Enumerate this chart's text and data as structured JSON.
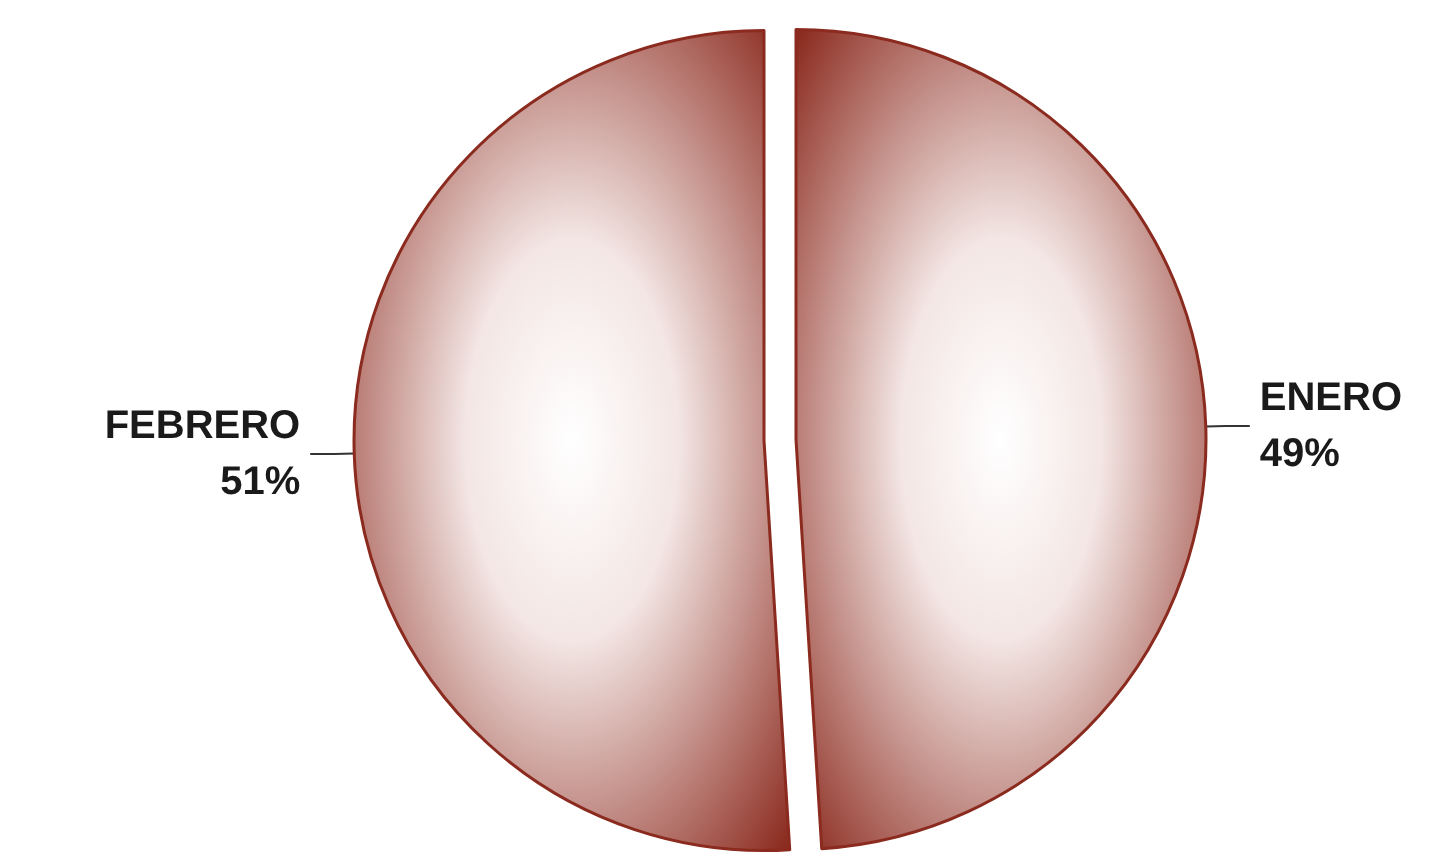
{
  "chart_data": {
    "type": "pie",
    "categories": [
      "ENERO",
      "FEBRERO"
    ],
    "values": [
      49,
      51
    ],
    "colors": [
      "#8b2a1e",
      "#8b2a1e"
    ],
    "value_labels": [
      "49%",
      "51%"
    ]
  }
}
